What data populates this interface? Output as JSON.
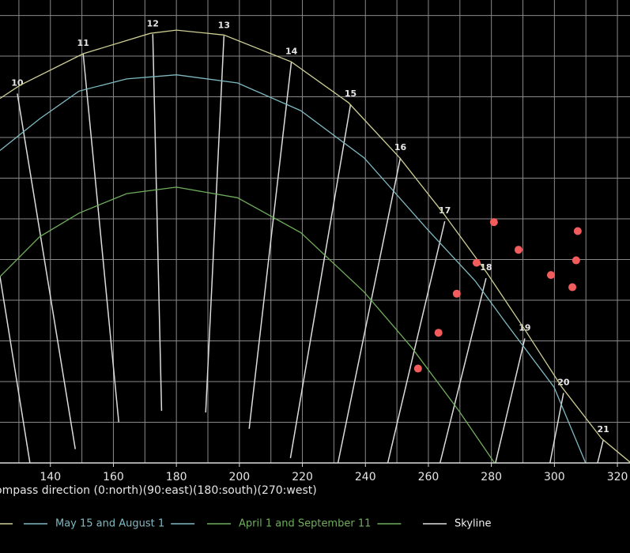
{
  "chart_data": {
    "type": "line",
    "x_label": "ompass direction (0:north)(90:east)(180:south)(270:west)",
    "xlim": [
      124,
      324
    ],
    "ylim": [
      0,
      56.9
    ],
    "xticks": [
      140,
      160,
      180,
      200,
      220,
      240,
      260,
      280,
      300,
      320
    ],
    "xgrid": [
      130,
      140,
      150,
      160,
      170,
      180,
      190,
      200,
      210,
      220,
      230,
      240,
      250,
      260,
      270,
      280,
      290,
      300,
      310,
      320
    ],
    "ygrid": [
      5,
      10,
      15,
      20,
      25,
      30,
      35,
      40,
      45,
      50,
      55
    ],
    "grid_color": "#8a8a8a",
    "hour_line_color": "#dcdcdc",
    "series": [
      {
        "color": "#cfcf95",
        "x": [
          124,
          130.3,
          150.4,
          171.7,
          180,
          195.1,
          216.5,
          234.6,
          250.9,
          264.7,
          278.5,
          291.1,
          302.4,
          315,
          324.3
        ],
        "y": [
          44.8,
          46.4,
          50.3,
          52.8,
          53.2,
          52.6,
          49.3,
          44.3,
          37.5,
          30.7,
          23.4,
          16.1,
          9.3,
          3.0,
          0
        ]
      },
      {
        "name": "May 15 and August 1",
        "color": "#7fb9c2",
        "x": [
          124,
          136.6,
          149.1,
          164.2,
          180,
          199.4,
          219.5,
          239.6,
          259.7,
          274.8,
          284.8,
          299.9,
          309.9
        ],
        "y": [
          38.4,
          42.3,
          45.7,
          47.2,
          47.7,
          46.7,
          43.3,
          37.5,
          28.7,
          22.4,
          17.1,
          9.3,
          0
        ]
      },
      {
        "name": "April 1 and September 11",
        "color": "#6fae5c",
        "x": [
          124,
          136.6,
          149.1,
          164.2,
          180,
          199.4,
          219.5,
          239.6,
          254.7,
          269.7,
          281
        ],
        "y": [
          22.9,
          27.8,
          30.7,
          33.1,
          33.9,
          32.6,
          28.3,
          21.0,
          14.2,
          6.4,
          0
        ]
      },
      {
        "name": "Skyline",
        "kind": "scatter",
        "color": "#f25c5c",
        "legend_color": "#e0e0e0",
        "x": [
          256.7,
          263.2,
          269.0,
          275.3,
          280.8,
          288.6,
          298.9,
          305.7,
          306.9,
          307.4
        ],
        "y": [
          11.6,
          16.0,
          20.8,
          24.6,
          29.6,
          26.2,
          23.1,
          21.6,
          24.9,
          28.5
        ]
      }
    ],
    "hour_lines": [
      {
        "label": null,
        "az": [
          124,
          133.5
        ],
        "el": [
          22.9,
          0
        ]
      },
      {
        "label": "10",
        "az": [
          129.5,
          147.9
        ],
        "el": [
          45.4,
          1.7
        ]
      },
      {
        "label": "11",
        "az": [
          150.4,
          161.7
        ],
        "el": [
          50.3,
          5.0
        ]
      },
      {
        "label": "12",
        "az": [
          172.5,
          175.3
        ],
        "el": [
          52.7,
          6.4
        ]
      },
      {
        "label": "13",
        "az": [
          195.1,
          189.3
        ],
        "el": [
          52.5,
          6.2
        ]
      },
      {
        "label": "14",
        "az": [
          216.5,
          203.1
        ],
        "el": [
          49.3,
          4.2
        ]
      },
      {
        "label": "15",
        "az": [
          235.3,
          216.2
        ],
        "el": [
          44.1,
          0.6
        ]
      },
      {
        "label": "16",
        "az": [
          251.1,
          231.3
        ],
        "el": [
          37.5,
          0
        ]
      },
      {
        "label": "17",
        "az": [
          265.2,
          247.1
        ],
        "el": [
          29.7,
          0
        ]
      },
      {
        "label": "18",
        "az": [
          278.3,
          263.7
        ],
        "el": [
          22.7,
          0
        ]
      },
      {
        "label": "19",
        "az": [
          290.6,
          281.3
        ],
        "el": [
          15.3,
          0
        ]
      },
      {
        "label": "20",
        "az": [
          302.9,
          298.6
        ],
        "el": [
          8.6,
          0
        ]
      },
      {
        "label": "21",
        "az": [
          315.5,
          313.7
        ],
        "el": [
          2.8,
          0
        ]
      }
    ]
  }
}
